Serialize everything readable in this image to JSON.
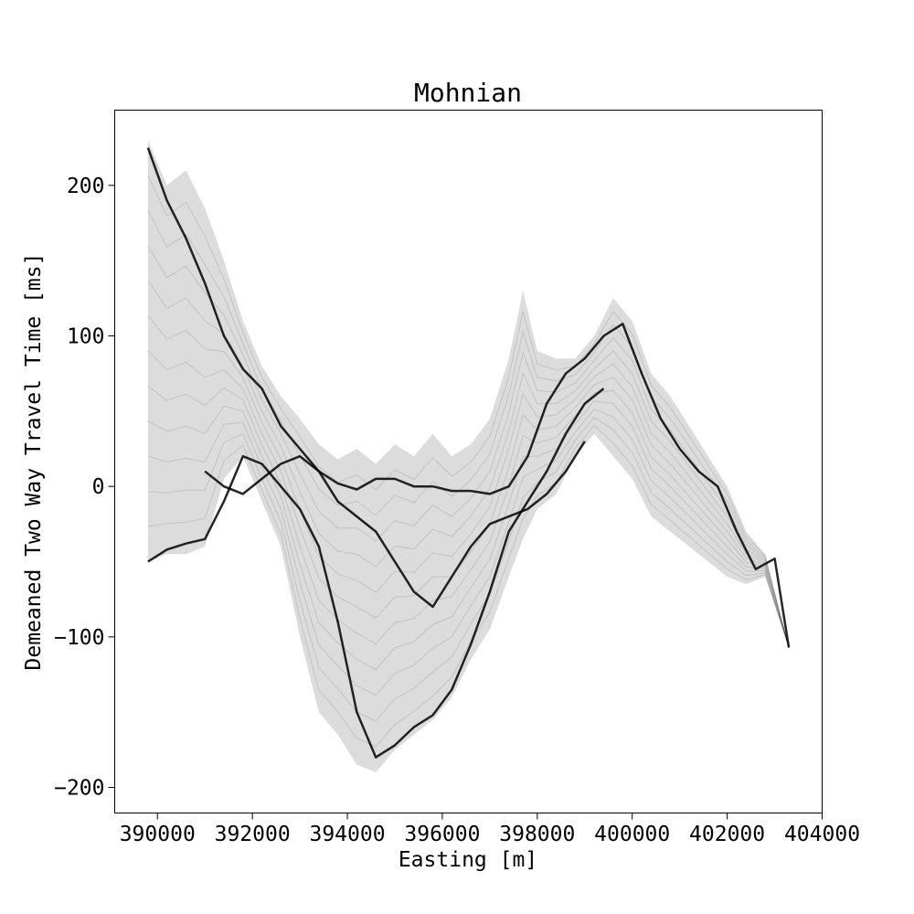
{
  "chart_data": {
    "type": "line",
    "title": "Mohnian",
    "xlabel": "Easting [m]",
    "ylabel": "Demeaned Two Way Travel Time [ms]",
    "xlim": [
      389100,
      404000
    ],
    "ylim": [
      -217,
      250
    ],
    "xticks": [
      390000,
      392000,
      394000,
      396000,
      398000,
      400000,
      402000,
      404000
    ],
    "xtick_labels": [
      "390000",
      "392000",
      "394000",
      "396000",
      "398000",
      "400000",
      "402000",
      "404000"
    ],
    "yticks": [
      200,
      100,
      0,
      -100,
      -200
    ],
    "ytick_labels": [
      "200",
      "100",
      "0",
      "−100",
      "−200"
    ],
    "grid": false,
    "line_color": "#000000",
    "envelope_color": "#9a9a9a",
    "envelope": {
      "x": [
        389800,
        390200,
        390600,
        391000,
        391400,
        391800,
        392200,
        392600,
        393000,
        393400,
        393800,
        394200,
        394600,
        395000,
        395400,
        395800,
        396200,
        396600,
        397000,
        397400,
        397700,
        398000,
        398400,
        398800,
        399200,
        399600,
        400000,
        400400,
        400800,
        401200,
        401600,
        402000,
        402400,
        402800,
        403300
      ],
      "upper": [
        230,
        200,
        210,
        185,
        150,
        110,
        80,
        60,
        45,
        28,
        18,
        25,
        15,
        28,
        20,
        35,
        20,
        28,
        45,
        85,
        130,
        90,
        85,
        85,
        100,
        125,
        110,
        75,
        60,
        40,
        20,
        0,
        -30,
        -45,
        -107
      ],
      "lower": [
        -50,
        -45,
        -45,
        -40,
        5,
        20,
        -10,
        -40,
        -100,
        -150,
        -165,
        -185,
        -190,
        -175,
        -165,
        -155,
        -140,
        -115,
        -95,
        -60,
        -35,
        -15,
        -5,
        20,
        35,
        20,
        5,
        -20,
        -30,
        -40,
        -50,
        -60,
        -65,
        -60,
        -107
      ]
    },
    "series": [
      {
        "x": [
          389800,
          390200,
          390600,
          391000,
          391400,
          391800,
          392200,
          392600,
          393000,
          393400,
          393800,
          394200,
          394600,
          395000,
          395400,
          395800,
          396200,
          396600,
          397000,
          397400,
          397800,
          398200,
          398600,
          399000,
          399400,
          399800,
          400200,
          400600,
          401000,
          401400,
          401800,
          402200,
          402600,
          403000,
          403300
        ],
        "values": [
          225,
          190,
          165,
          135,
          100,
          78,
          65,
          40,
          25,
          10,
          2,
          -2,
          5,
          5,
          0,
          0,
          -3,
          -3,
          -5,
          0,
          20,
          55,
          75,
          85,
          100,
          108,
          75,
          45,
          25,
          10,
          0,
          -30,
          -55,
          -48,
          -107
        ]
      },
      {
        "x": [
          389800,
          390200,
          390600,
          391000,
          391400,
          391800,
          392200,
          392600,
          393000,
          393400,
          393800,
          394200,
          394600,
          395000,
          395400,
          395800,
          396200,
          396600,
          397000,
          397400,
          397800,
          398200,
          398600,
          399000,
          399400
        ],
        "values": [
          -50,
          -42,
          -38,
          -35,
          -10,
          20,
          15,
          0,
          -15,
          -40,
          -90,
          -150,
          -180,
          -172,
          -160,
          -152,
          -135,
          -105,
          -70,
          -30,
          -10,
          10,
          35,
          55,
          65
        ]
      },
      {
        "x": [
          391000,
          391400,
          391800,
          392200,
          392600,
          393000,
          393400,
          393800,
          394200,
          394600,
          395000,
          395400,
          395800,
          396200,
          396600,
          397000,
          397400,
          397800,
          398200,
          398600,
          399000
        ],
        "values": [
          10,
          0,
          -5,
          5,
          15,
          20,
          10,
          -10,
          -20,
          -30,
          -50,
          -70,
          -80,
          -60,
          -40,
          -25,
          -20,
          -15,
          -5,
          10,
          30
        ]
      }
    ]
  }
}
